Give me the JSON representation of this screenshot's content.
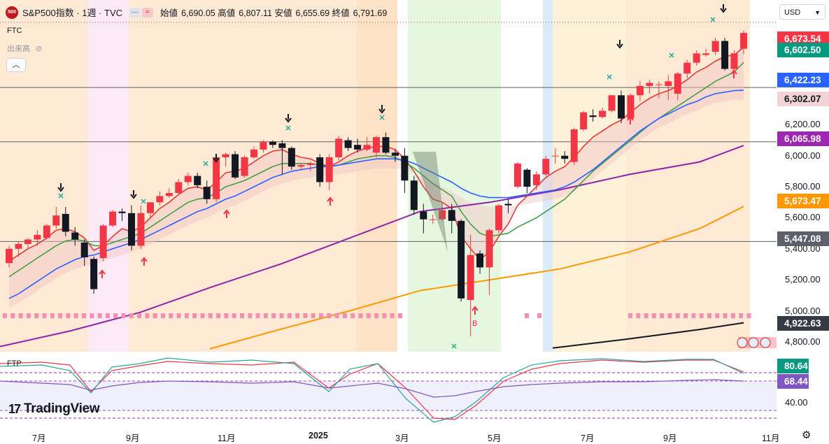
{
  "header": {
    "logo_text": "500",
    "title": "S&P500指数 · 1週 · TVC",
    "ohlc": [
      {
        "label": "始値",
        "value": "6,690.05"
      },
      {
        "label": "高値",
        "value": "6,807.11"
      },
      {
        "label": "安値",
        "value": "6,655.69"
      },
      {
        "label": "終値",
        "value": "6,791.69"
      }
    ]
  },
  "indicators": {
    "ftc": "FTC",
    "volume": "出来高",
    "ftp": "FTP"
  },
  "currency": "USD",
  "brand": "TradingView",
  "price_axis": [
    "6,200.00",
    "6,000.00",
    "5,800.00",
    "5,600.00",
    "5,400.00",
    "5,200.00",
    "5,000.00",
    "4,800.00"
  ],
  "price_tags": [
    {
      "value": "6,673.54",
      "color": "#f23645"
    },
    {
      "value": "6,602.50",
      "color": "#089981"
    },
    {
      "value": "6,422.23",
      "color": "#2962ff"
    },
    {
      "value": "6,302.07",
      "color": "#f3d3d5"
    },
    {
      "value": "6,065.98",
      "color": "#9c27b0"
    },
    {
      "value": "5,673.47",
      "color": "#ff9800"
    },
    {
      "value": "5,447.08",
      "color": "#5d606b"
    },
    {
      "value": "4,922.63",
      "color": "#363a45"
    }
  ],
  "osc_axis": [
    "40.00"
  ],
  "osc_tags": [
    {
      "value": "80.64",
      "color": "#089981"
    },
    {
      "value": "68.44",
      "color": "#7e57c2"
    }
  ],
  "time_axis": [
    {
      "label": "7月"
    },
    {
      "label": "9月"
    },
    {
      "label": "11月"
    },
    {
      "label": "2025"
    },
    {
      "label": "3月"
    },
    {
      "label": "5月"
    },
    {
      "label": "7月"
    },
    {
      "label": "9月"
    },
    {
      "label": "11月"
    }
  ],
  "signal_label": "B",
  "colors": {
    "up": "#f23645",
    "down": "#131722",
    "ema_fast": "#e53935",
    "ema_mid": "#43a047",
    "ema_slow": "#2962ff",
    "sma_long": "#8e24aa",
    "sma_200": "#ff9800"
  },
  "chart_data": {
    "type": "candlestick",
    "title": "S&P500指数",
    "interval": "1週",
    "y_range": [
      4750,
      6860
    ],
    "candles": [
      {
        "o": 5308,
        "h": 5420,
        "l": 5280,
        "c": 5400
      },
      {
        "o": 5400,
        "h": 5450,
        "l": 5350,
        "c": 5431
      },
      {
        "o": 5431,
        "h": 5470,
        "l": 5400,
        "c": 5460
      },
      {
        "o": 5460,
        "h": 5520,
        "l": 5420,
        "c": 5490
      },
      {
        "o": 5470,
        "h": 5560,
        "l": 5460,
        "c": 5550
      },
      {
        "o": 5550,
        "h": 5670,
        "l": 5530,
        "c": 5615
      },
      {
        "o": 5625,
        "h": 5670,
        "l": 5480,
        "c": 5510
      },
      {
        "o": 5505,
        "h": 5540,
        "l": 5420,
        "c": 5460
      },
      {
        "o": 5440,
        "h": 5460,
        "l": 5290,
        "c": 5345
      },
      {
        "o": 5335,
        "h": 5350,
        "l": 5110,
        "c": 5140
      },
      {
        "o": 5340,
        "h": 5560,
        "l": 5320,
        "c": 5550
      },
      {
        "o": 5550,
        "h": 5650,
        "l": 5540,
        "c": 5640
      },
      {
        "o": 5640,
        "h": 5660,
        "l": 5580,
        "c": 5630
      },
      {
        "o": 5630,
        "h": 5680,
        "l": 5390,
        "c": 5420
      },
      {
        "o": 5420,
        "h": 5680,
        "l": 5400,
        "c": 5630
      },
      {
        "o": 5630,
        "h": 5700,
        "l": 5600,
        "c": 5700
      },
      {
        "o": 5700,
        "h": 5770,
        "l": 5680,
        "c": 5740
      },
      {
        "o": 5740,
        "h": 5790,
        "l": 5730,
        "c": 5760
      },
      {
        "o": 5760,
        "h": 5850,
        "l": 5750,
        "c": 5830
      },
      {
        "o": 5830,
        "h": 5890,
        "l": 5810,
        "c": 5870
      },
      {
        "o": 5870,
        "h": 5890,
        "l": 5790,
        "c": 5810
      },
      {
        "o": 5800,
        "h": 5840,
        "l": 5690,
        "c": 5720
      },
      {
        "o": 5720,
        "h": 6000,
        "l": 5700,
        "c": 5990
      },
      {
        "o": 5990,
        "h": 6020,
        "l": 5930,
        "c": 6010
      },
      {
        "o": 6010,
        "h": 6030,
        "l": 5850,
        "c": 5860
      },
      {
        "o": 5870,
        "h": 6000,
        "l": 5860,
        "c": 5990
      },
      {
        "o": 5990,
        "h": 6060,
        "l": 5980,
        "c": 6040
      },
      {
        "o": 6040,
        "h": 6100,
        "l": 6020,
        "c": 6090
      },
      {
        "o": 6090,
        "h": 6100,
        "l": 6050,
        "c": 6070
      },
      {
        "o": 6080,
        "h": 6100,
        "l": 5880,
        "c": 6050
      },
      {
        "o": 6050,
        "h": 6060,
        "l": 5910,
        "c": 5930
      },
      {
        "o": 5930,
        "h": 5950,
        "l": 5910,
        "c": 5940
      },
      {
        "o": 5940,
        "h": 5960,
        "l": 5900,
        "c": 5950
      },
      {
        "o": 5990,
        "h": 6010,
        "l": 5800,
        "c": 5830
      },
      {
        "o": 5830,
        "h": 6010,
        "l": 5780,
        "c": 5990
      },
      {
        "o": 5990,
        "h": 6130,
        "l": 5970,
        "c": 6110
      },
      {
        "o": 6100,
        "h": 6120,
        "l": 6030,
        "c": 6050
      },
      {
        "o": 6070,
        "h": 6110,
        "l": 6020,
        "c": 6040
      },
      {
        "o": 6040,
        "h": 6120,
        "l": 6030,
        "c": 6070
      },
      {
        "o": 6020,
        "h": 6130,
        "l": 5990,
        "c": 6120
      },
      {
        "o": 6120,
        "h": 6150,
        "l": 6010,
        "c": 6020
      },
      {
        "o": 6020,
        "h": 6040,
        "l": 5960,
        "c": 6000
      },
      {
        "o": 6000,
        "h": 6050,
        "l": 5760,
        "c": 5840
      },
      {
        "o": 5840,
        "h": 5870,
        "l": 5620,
        "c": 5650
      },
      {
        "o": 5640,
        "h": 5690,
        "l": 5500,
        "c": 5590
      },
      {
        "o": 5590,
        "h": 5620,
        "l": 5560,
        "c": 5590
      },
      {
        "o": 5590,
        "h": 5700,
        "l": 5580,
        "c": 5650
      },
      {
        "o": 5650,
        "h": 5690,
        "l": 5500,
        "c": 5580
      },
      {
        "o": 5580,
        "h": 5590,
        "l": 5060,
        "c": 5080
      },
      {
        "o": 5070,
        "h": 5490,
        "l": 4835,
        "c": 5360
      },
      {
        "o": 5370,
        "h": 5390,
        "l": 5240,
        "c": 5280
      },
      {
        "o": 5280,
        "h": 5530,
        "l": 5100,
        "c": 5520
      },
      {
        "o": 5520,
        "h": 5690,
        "l": 5500,
        "c": 5680
      },
      {
        "o": 5690,
        "h": 5720,
        "l": 5630,
        "c": 5680
      },
      {
        "o": 5800,
        "h": 5960,
        "l": 5790,
        "c": 5950
      },
      {
        "o": 5910,
        "h": 5920,
        "l": 5760,
        "c": 5800
      },
      {
        "o": 5810,
        "h": 5900,
        "l": 5780,
        "c": 5880
      },
      {
        "o": 5880,
        "h": 6000,
        "l": 5870,
        "c": 5980
      },
      {
        "o": 6000,
        "h": 6050,
        "l": 5950,
        "c": 6000
      },
      {
        "o": 6000,
        "h": 6030,
        "l": 5950,
        "c": 5980
      },
      {
        "o": 5960,
        "h": 6180,
        "l": 5940,
        "c": 6170
      },
      {
        "o": 6170,
        "h": 6290,
        "l": 6160,
        "c": 6280
      },
      {
        "o": 6260,
        "h": 6300,
        "l": 6220,
        "c": 6250
      },
      {
        "o": 6250,
        "h": 6310,
        "l": 6240,
        "c": 6290
      },
      {
        "o": 6290,
        "h": 6390,
        "l": 6280,
        "c": 6390
      },
      {
        "o": 6390,
        "h": 6420,
        "l": 6210,
        "c": 6240
      },
      {
        "o": 6240,
        "h": 6400,
        "l": 6220,
        "c": 6390
      },
      {
        "o": 6390,
        "h": 6480,
        "l": 6350,
        "c": 6450
      },
      {
        "o": 6450,
        "h": 6490,
        "l": 6400,
        "c": 6470
      },
      {
        "o": 6460,
        "h": 6480,
        "l": 6370,
        "c": 6460
      },
      {
        "o": 6450,
        "h": 6520,
        "l": 6360,
        "c": 6480
      },
      {
        "o": 6400,
        "h": 6540,
        "l": 6360,
        "c": 6530
      },
      {
        "o": 6530,
        "h": 6620,
        "l": 6500,
        "c": 6600
      },
      {
        "o": 6600,
        "h": 6680,
        "l": 6580,
        "c": 6660
      },
      {
        "o": 6650,
        "h": 6690,
        "l": 6640,
        "c": 6660
      },
      {
        "o": 6670,
        "h": 6760,
        "l": 6650,
        "c": 6740
      },
      {
        "o": 6740,
        "h": 6760,
        "l": 6550,
        "c": 6560
      },
      {
        "o": 6560,
        "h": 6680,
        "l": 6550,
        "c": 6660
      },
      {
        "o": 6690,
        "h": 6807,
        "l": 6656,
        "c": 6792
      }
    ],
    "moving_averages": [
      {
        "color": "#e53935",
        "values": [
          5320,
          5360,
          5400,
          5430,
          5470,
          5520,
          5530,
          5510,
          5470,
          5390,
          5420,
          5480,
          5530,
          5510,
          5540,
          5600,
          5660,
          5700,
          5750,
          5790,
          5800,
          5780,
          5830,
          5890,
          5900,
          5920,
          5960,
          6000,
          6030,
          6040,
          6010,
          5990,
          5980,
          5950,
          5930,
          5960,
          6000,
          6030,
          6050,
          6060,
          6060,
          6040,
          5980,
          5900,
          5800,
          5720,
          5700,
          5660,
          5480,
          5400,
          5330,
          5380,
          5480,
          5560,
          5680,
          5740,
          5800,
          5860,
          5900,
          5930,
          5990,
          6060,
          6120,
          6160,
          6200,
          6230,
          6280,
          6330,
          6370,
          6400,
          6420,
          6450,
          6490,
          6540,
          6570,
          6610,
          6640,
          6650,
          6700
        ]
      },
      {
        "color": "#43a047",
        "values": [
          5220,
          5260,
          5300,
          5340,
          5380,
          5420,
          5450,
          5460,
          5450,
          5420,
          5420,
          5440,
          5460,
          5480,
          5500,
          5540,
          5580,
          5620,
          5660,
          5700,
          5720,
          5730,
          5760,
          5800,
          5820,
          5840,
          5870,
          5900,
          5930,
          5950,
          5950,
          5950,
          5950,
          5940,
          5930,
          5940,
          5960,
          5980,
          5990,
          6000,
          6000,
          5990,
          5960,
          5920,
          5870,
          5820,
          5780,
          5740,
          5640,
          5560,
          5500,
          5480,
          5490,
          5500,
          5540,
          5570,
          5600,
          5640,
          5680,
          5720,
          5780,
          5840,
          5900,
          5950,
          6000,
          6050,
          6100,
          6150,
          6200,
          6240,
          6280,
          6320,
          6360,
          6400,
          6440,
          6480,
          6510,
          6540,
          6602
        ]
      },
      {
        "color": "#2962ff",
        "values": [
          5080,
          5110,
          5150,
          5190,
          5230,
          5270,
          5300,
          5330,
          5350,
          5360,
          5380,
          5400,
          5420,
          5440,
          5460,
          5490,
          5520,
          5550,
          5580,
          5610,
          5640,
          5660,
          5690,
          5720,
          5740,
          5770,
          5800,
          5830,
          5860,
          5880,
          5900,
          5910,
          5920,
          5930,
          5930,
          5940,
          5950,
          5960,
          5970,
          5980,
          5980,
          5980,
          5970,
          5950,
          5920,
          5890,
          5860,
          5830,
          5790,
          5760,
          5740,
          5730,
          5730,
          5730,
          5740,
          5750,
          5760,
          5770,
          5780,
          5800,
          5830,
          5870,
          5910,
          5960,
          6010,
          6060,
          6110,
          6160,
          6200,
          6240,
          6270,
          6300,
          6330,
          6350,
          6380,
          6400,
          6410,
          6420,
          6422
        ]
      }
    ]
  }
}
